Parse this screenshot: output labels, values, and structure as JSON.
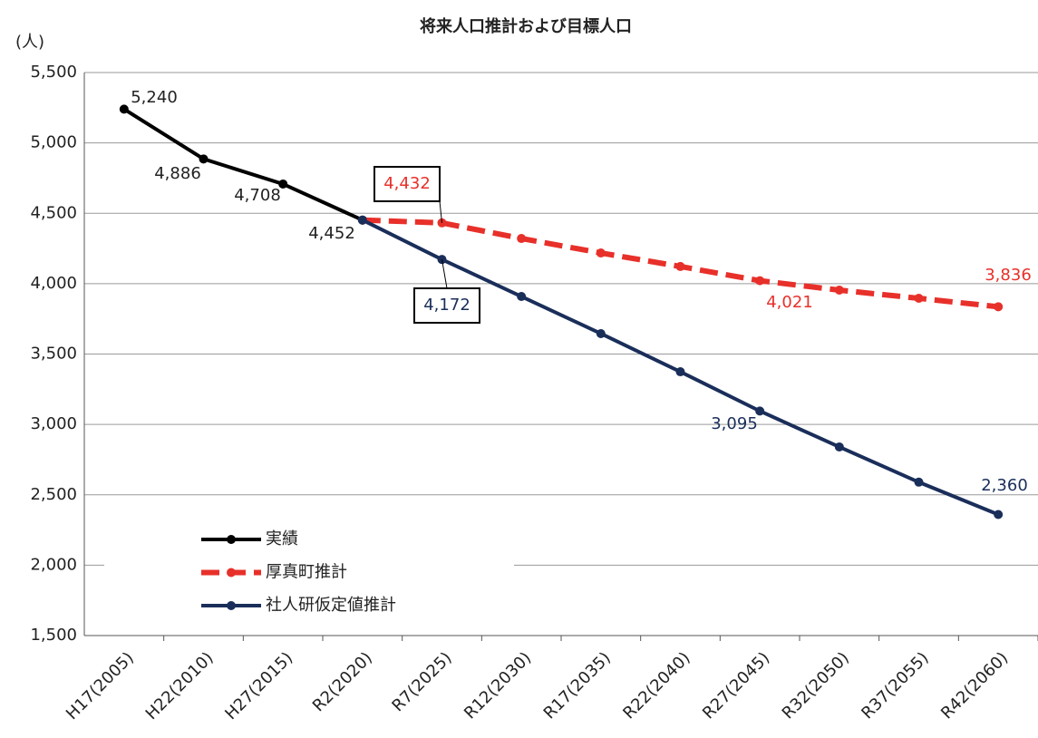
{
  "chart_data": {
    "type": "line",
    "title": "将来人口推計および目標人口",
    "y_unit": "(人)",
    "categories": [
      "H17(2005)",
      "H22(2010)",
      "H27(2015)",
      "R2(2020)",
      "R7(2025)",
      "R12(2030)",
      "R17(2035)",
      "R22(2040)",
      "R27(2045)",
      "R32(2050)",
      "R37(2055)",
      "R42(2060)"
    ],
    "series": [
      {
        "name": "実績",
        "color": "#000000",
        "values": [
          5240,
          4886,
          4708,
          4452,
          null,
          null,
          null,
          null,
          null,
          null,
          null,
          null
        ],
        "value_labels": [
          "5,240",
          "4,886",
          "4,708",
          "4,452",
          null,
          null,
          null,
          null,
          null,
          null,
          null,
          null
        ]
      },
      {
        "name": "厚真町推計",
        "color": "#e8302a",
        "dashed": true,
        "values": [
          null,
          null,
          null,
          4452,
          4432,
          4321,
          4218,
          4122,
          4021,
          3954,
          3896,
          3836
        ],
        "value_labels": [
          null,
          null,
          null,
          null,
          "4,432",
          null,
          null,
          null,
          "4,021",
          null,
          null,
          "3,836"
        ]
      },
      {
        "name": "社人研仮定値推計",
        "color": "#1a2e5a",
        "values": [
          null,
          null,
          null,
          4452,
          4172,
          3909,
          3645,
          3374,
          3095,
          2840,
          2590,
          2360
        ],
        "value_labels": [
          null,
          null,
          null,
          null,
          "4,172",
          null,
          null,
          null,
          "3,095",
          null,
          null,
          "2,360"
        ]
      }
    ],
    "ylim": [
      1500,
      5500
    ],
    "yticks": [
      {
        "value": 1500,
        "label": "1,500"
      },
      {
        "value": 2000,
        "label": "2,000"
      },
      {
        "value": 2500,
        "label": "2,500"
      },
      {
        "value": 3000,
        "label": "3,000"
      },
      {
        "value": 3500,
        "label": "3,500"
      },
      {
        "value": 4000,
        "label": "4,000"
      },
      {
        "value": 4500,
        "label": "4,500"
      },
      {
        "value": 5000,
        "label": "5,000"
      },
      {
        "value": 5500,
        "label": "5,500"
      }
    ],
    "grid": true,
    "legend": "lower left"
  }
}
